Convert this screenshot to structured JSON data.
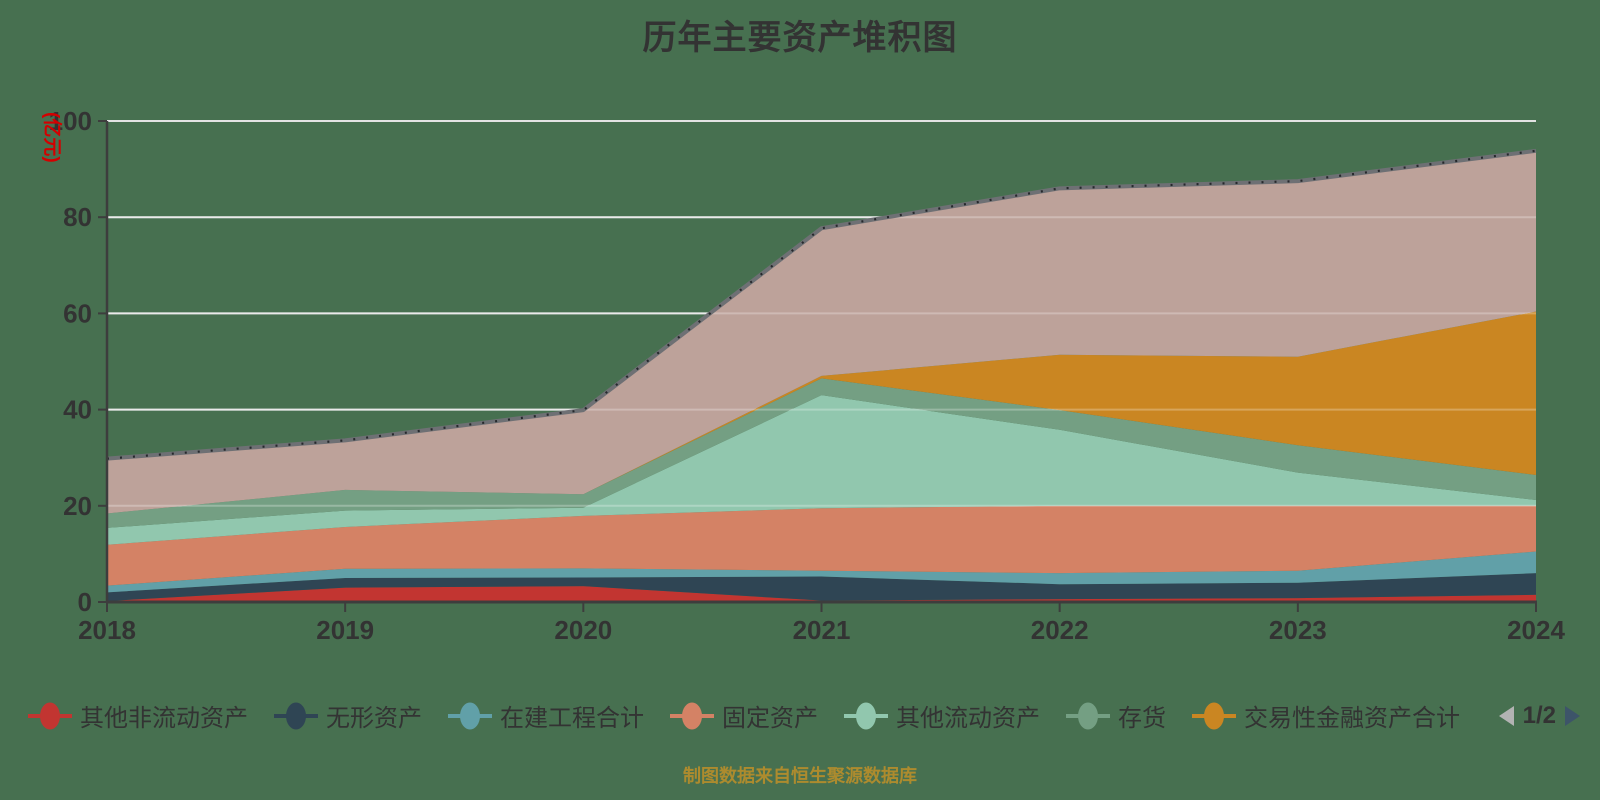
{
  "title": {
    "text": "历年主要资产堆积图"
  },
  "caption": {
    "text": "制图数据来自恒生聚源数据库"
  },
  "legend": {
    "items": [
      "其他非流动资产",
      "无形资产",
      "在建工程合计",
      "固定资产",
      "其他流动资产",
      "存货",
      "交易性金融资产合计"
    ],
    "page_label": "1/2"
  },
  "colors": {
    "background": "#477050",
    "grid_line": "#e3e3e3",
    "axis_line": "#3d3d3d",
    "tick_label": "#333333",
    "y_unit_label": "#d40000",
    "top_outline": "#6e7074",
    "top_outline_dots": "#26282c",
    "pager_prev": "#b3b3b3",
    "pager_next": "#3d5469",
    "caption_text": "#ad8b2e"
  },
  "chart_data": {
    "type": "area",
    "stacked": true,
    "title": "历年主要资产堆积图",
    "ylabel": "(亿元)",
    "ylim": [
      0,
      100
    ],
    "y_ticks": [
      0,
      20,
      40,
      60,
      80,
      100
    ],
    "grid": true,
    "legend_position": "bottom",
    "categories": [
      "2018",
      "2019",
      "2020",
      "2021",
      "2022",
      "2023",
      "2024"
    ],
    "series": [
      {
        "name": "其他非流动资产",
        "color": "#c23531",
        "values": [
          0.2,
          3.0,
          3.3,
          0.3,
          0.6,
          0.8,
          1.5
        ]
      },
      {
        "name": "无形资产",
        "color": "#2f4554",
        "values": [
          1.8,
          2.0,
          1.8,
          5.0,
          3.1,
          3.2,
          4.5
        ]
      },
      {
        "name": "在建工程合计",
        "color": "#61a0a8",
        "values": [
          1.4,
          1.9,
          1.9,
          1.2,
          2.3,
          2.5,
          4.5
        ]
      },
      {
        "name": "固定资产",
        "color": "#d48265",
        "values": [
          8.5,
          8.7,
          10.9,
          13.0,
          14.0,
          13.5,
          9.5
        ]
      },
      {
        "name": "其他流动资产",
        "color": "#91c7ae",
        "values": [
          3.5,
          3.4,
          1.7,
          23.5,
          15.8,
          6.9,
          1.2
        ]
      },
      {
        "name": "存货",
        "color": "#749f83",
        "values": [
          3.0,
          4.3,
          2.8,
          3.5,
          4.1,
          5.7,
          5.2
        ]
      },
      {
        "name": "交易性金融资产合计",
        "color": "#ca8622",
        "values": [
          0.0,
          0.0,
          0.0,
          0.5,
          11.5,
          18.4,
          34.0
        ]
      },
      {
        "name": "",
        "color": "#bda29a",
        "values": [
          11.4,
          10.3,
          17.5,
          30.7,
          34.6,
          36.5,
          33.4
        ]
      }
    ]
  }
}
